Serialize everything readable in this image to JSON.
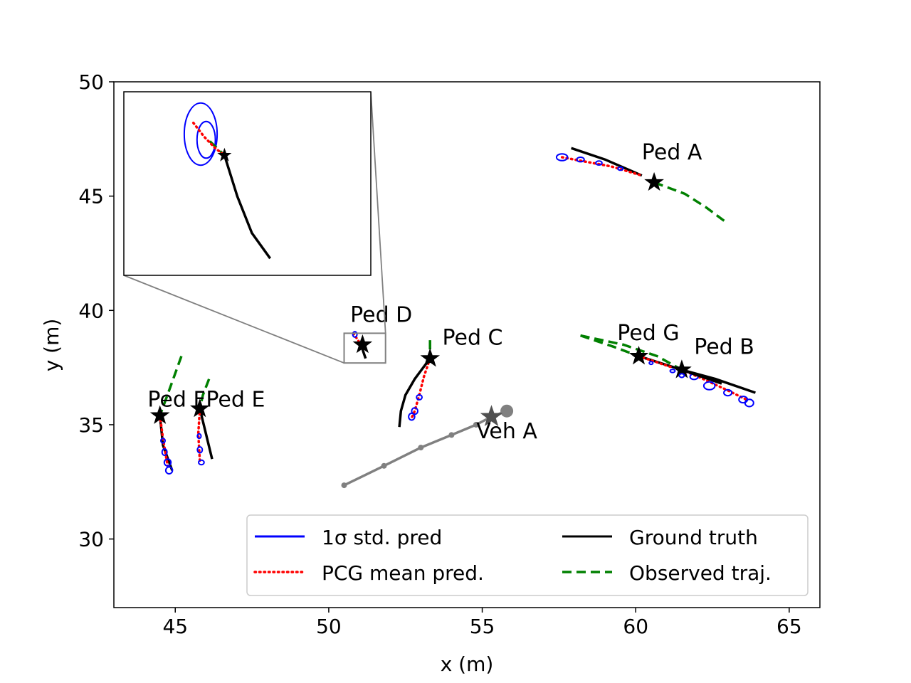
{
  "chart_data": {
    "type": "line",
    "title": "",
    "xlabel": "x (m)",
    "ylabel": "y (m)",
    "xlim": [
      43,
      66
    ],
    "ylim": [
      27,
      50
    ],
    "xticks": [
      45,
      50,
      55,
      60,
      65
    ],
    "yticks": [
      30,
      35,
      40,
      45,
      50
    ],
    "grid": false,
    "colors": {
      "std": "#0000ff",
      "mean": "#ff0000",
      "truth": "#000000",
      "observed": "#008000",
      "vehicle": "#808080",
      "vehicle_star": "#505050",
      "inset_frame": "#808080"
    },
    "legend": {
      "placement": "lower-right",
      "entries": [
        {
          "label": "1σ std. pred",
          "style": "std"
        },
        {
          "label": "Ground truth",
          "style": "truth"
        },
        {
          "label": "PCG mean pred.",
          "style": "mean"
        },
        {
          "label": "Observed traj.",
          "style": "observed"
        }
      ]
    },
    "agents": [
      {
        "label": "Ped A",
        "label_at": [
          60.2,
          46.6
        ],
        "star": [
          60.6,
          45.6
        ],
        "observed": [
          [
            60.6,
            45.6
          ],
          [
            61.6,
            45.1
          ],
          [
            62.3,
            44.5
          ],
          [
            63.0,
            43.8
          ]
        ],
        "truth": [
          [
            57.9,
            47.1
          ],
          [
            59.0,
            46.6
          ],
          [
            60.2,
            45.9
          ]
        ],
        "mean": [
          [
            57.6,
            46.7
          ],
          [
            58.4,
            46.5
          ],
          [
            59.2,
            46.3
          ],
          [
            60.2,
            45.9
          ]
        ],
        "std": [
          [
            57.6,
            46.7,
            0.18,
            0.15
          ],
          [
            58.2,
            46.6,
            0.12,
            0.1
          ],
          [
            58.8,
            46.45,
            0.1,
            0.09
          ],
          [
            59.5,
            46.2,
            0.08,
            0.07
          ]
        ]
      },
      {
        "label": "Ped B",
        "label_at": [
          61.9,
          38.1
        ],
        "star": [
          61.5,
          37.4
        ],
        "observed": [
          [
            58.2,
            38.9
          ],
          [
            59.6,
            38.5
          ],
          [
            60.7,
            38.0
          ],
          [
            61.5,
            37.4
          ]
        ],
        "truth": [
          [
            61.5,
            37.4
          ],
          [
            62.6,
            37.0
          ],
          [
            63.9,
            36.4
          ]
        ],
        "mean": [
          [
            61.5,
            37.4
          ],
          [
            62.2,
            37.0
          ],
          [
            63.0,
            36.5
          ],
          [
            63.6,
            36.1
          ]
        ],
        "std": [
          [
            61.9,
            37.1,
            0.13,
            0.12
          ],
          [
            62.4,
            36.7,
            0.18,
            0.17
          ],
          [
            63.0,
            36.4,
            0.13,
            0.13
          ],
          [
            63.5,
            36.1,
            0.14,
            0.14
          ],
          [
            63.7,
            35.95,
            0.14,
            0.16
          ]
        ]
      },
      {
        "label": "Ped C",
        "label_at": [
          53.7,
          38.5
        ],
        "star": [
          53.3,
          37.9
        ],
        "observed": [
          [
            53.3,
            38.7
          ],
          [
            53.3,
            38.2
          ],
          [
            53.3,
            37.9
          ]
        ],
        "truth": [
          [
            53.3,
            37.9
          ],
          [
            52.8,
            37.0
          ],
          [
            52.5,
            36.3
          ],
          [
            52.35,
            35.6
          ],
          [
            52.3,
            34.9
          ]
        ],
        "mean": [
          [
            53.3,
            37.9
          ],
          [
            53.1,
            37.1
          ],
          [
            52.95,
            36.3
          ],
          [
            52.8,
            35.6
          ],
          [
            52.7,
            35.3
          ]
        ],
        "std": [
          [
            52.95,
            36.2,
            0.09,
            0.11
          ],
          [
            52.8,
            35.6,
            0.1,
            0.14
          ],
          [
            52.7,
            35.35,
            0.1,
            0.15
          ]
        ]
      },
      {
        "label": "Ped D",
        "label_at": [
          50.7,
          39.5
        ],
        "star": [
          51.1,
          38.5
        ],
        "observed": [],
        "truth": [
          [
            51.05,
            38.5
          ],
          [
            51.15,
            38.1
          ],
          [
            51.2,
            37.9
          ]
        ],
        "mean": [
          [
            50.8,
            39.0
          ],
          [
            51.05,
            38.5
          ]
        ],
        "std": [
          [
            50.85,
            38.95,
            0.07,
            0.12
          ]
        ]
      },
      {
        "label": "Ped E",
        "label_at": [
          46.0,
          35.8
        ],
        "star": [
          45.8,
          35.7
        ],
        "observed": [
          [
            46.1,
            37.0
          ],
          [
            45.9,
            36.3
          ],
          [
            45.8,
            35.7
          ]
        ],
        "truth": [
          [
            45.8,
            35.7
          ],
          [
            46.0,
            34.6
          ],
          [
            46.2,
            33.5
          ]
        ],
        "mean": [
          [
            45.8,
            35.7
          ],
          [
            45.75,
            34.6
          ],
          [
            45.8,
            33.4
          ]
        ],
        "std": [
          [
            45.78,
            34.5,
            0.06,
            0.1
          ],
          [
            45.8,
            33.9,
            0.08,
            0.13
          ],
          [
            45.85,
            33.35,
            0.09,
            0.1
          ]
        ]
      },
      {
        "label": "Ped F",
        "label_at": [
          44.1,
          35.8
        ],
        "star": [
          44.5,
          35.4
        ],
        "observed": [
          [
            45.2,
            38.0
          ],
          [
            44.8,
            36.5
          ],
          [
            44.5,
            35.4
          ]
        ],
        "truth": [
          [
            44.5,
            35.4
          ],
          [
            44.6,
            34.1
          ],
          [
            44.9,
            33.0
          ]
        ],
        "mean": [
          [
            44.5,
            35.4
          ],
          [
            44.6,
            34.4
          ],
          [
            44.75,
            33.2
          ]
        ],
        "std": [
          [
            44.6,
            34.3,
            0.07,
            0.1
          ],
          [
            44.65,
            33.8,
            0.08,
            0.14
          ],
          [
            44.75,
            33.35,
            0.11,
            0.15
          ],
          [
            44.8,
            33.0,
            0.11,
            0.15
          ]
        ]
      },
      {
        "label": "Ped G",
        "label_at": [
          59.4,
          38.7
        ],
        "star": [
          60.1,
          38.0
        ],
        "observed": [
          [
            58.2,
            38.9
          ],
          [
            59.3,
            38.4
          ],
          [
            60.1,
            38.0
          ]
        ],
        "truth": [
          [
            60.1,
            38.0
          ],
          [
            61.5,
            37.4
          ],
          [
            62.8,
            36.8
          ]
        ],
        "mean": [
          [
            60.1,
            38.0
          ],
          [
            61.2,
            37.5
          ]
        ],
        "std": [
          [
            60.5,
            37.7,
            0.06,
            0.06
          ],
          [
            61.2,
            37.35,
            0.08,
            0.07
          ],
          [
            61.5,
            37.15,
            0.08,
            0.08
          ]
        ]
      }
    ],
    "vehicle": {
      "label": "Veh A",
      "label_at": [
        55.8,
        34.4
      ],
      "star": [
        55.3,
        35.35
      ],
      "current": [
        55.8,
        35.6
      ],
      "path": [
        [
          50.5,
          32.35
        ],
        [
          51.8,
          33.2
        ],
        [
          53.0,
          34.0
        ],
        [
          54.0,
          34.55
        ],
        [
          54.8,
          35.0
        ],
        [
          55.3,
          35.35
        ],
        [
          55.8,
          35.6
        ]
      ],
      "dots": [
        [
          50.5,
          32.35
        ],
        [
          51.8,
          33.2
        ],
        [
          53.0,
          34.0
        ],
        [
          54.0,
          34.55
        ],
        [
          54.8,
          35.0
        ]
      ]
    },
    "inset": {
      "source_xlim": [
        50.5,
        51.85
      ],
      "source_ylim": [
        37.7,
        39.0
      ],
      "inset_xlim": [
        50.5,
        51.85
      ],
      "inset_ylim": [
        37.7,
        39.0
      ],
      "truth": [
        [
          51.05,
          38.55
        ],
        [
          51.12,
          38.26
        ],
        [
          51.2,
          38.0
        ],
        [
          51.3,
          37.82
        ]
      ],
      "mean": [
        [
          50.88,
          38.78
        ],
        [
          50.94,
          38.68
        ],
        [
          51.0,
          38.6
        ],
        [
          51.05,
          38.55
        ]
      ],
      "observed": [
        [
          50.97,
          38.65
        ],
        [
          51.05,
          38.55
        ]
      ],
      "std": [
        [
          50.92,
          38.7,
          0.09,
          0.22
        ],
        [
          50.95,
          38.66,
          0.05,
          0.13
        ]
      ]
    }
  }
}
